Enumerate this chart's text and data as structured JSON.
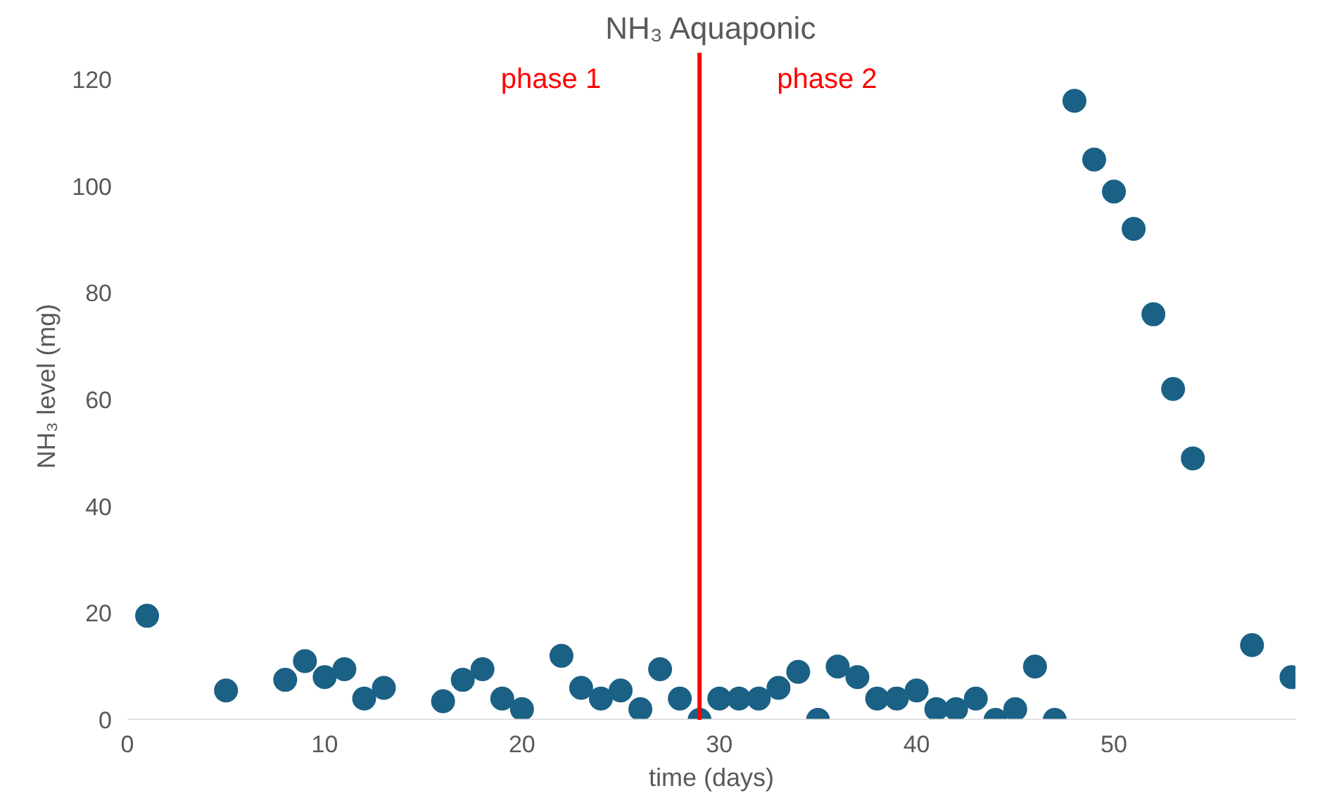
{
  "chart_data": {
    "type": "scatter",
    "title": "NH₃ Aquaponic",
    "xlabel": "time (days)",
    "ylabel": "NH₃ level (mg)",
    "x": [
      1,
      5,
      8,
      9,
      10,
      11,
      12,
      13,
      16,
      17,
      18,
      19,
      20,
      22,
      23,
      24,
      25,
      26,
      27,
      28,
      29,
      30,
      31,
      32,
      33,
      34,
      35,
      36,
      37,
      38,
      39,
      40,
      41,
      42,
      43,
      44,
      45,
      46,
      47,
      48,
      49,
      50,
      51,
      52,
      53,
      54,
      57,
      59
    ],
    "series": [
      {
        "color": "#1a6185",
        "values": [
          19.5,
          5.5,
          7.5,
          11,
          8,
          9.5,
          4,
          6,
          3.5,
          7.5,
          9.5,
          4,
          2,
          12,
          6,
          4,
          5.5,
          2,
          9.5,
          4,
          0,
          4,
          4,
          4,
          6,
          9,
          0,
          10,
          8,
          4,
          4,
          5.5,
          2,
          2,
          4,
          0,
          2,
          10,
          0,
          116,
          105,
          99,
          92,
          76,
          62,
          49,
          14,
          8
        ]
      }
    ],
    "xlim": [
      0,
      59.2
    ],
    "ylim": [
      0,
      125
    ],
    "xticks": [
      0,
      10,
      20,
      30,
      40,
      50
    ],
    "yticks": [
      0,
      20,
      40,
      60,
      80,
      100,
      120
    ],
    "grid": false,
    "marker": "circle",
    "ref_lines": [
      {
        "axis": "x",
        "value": 29,
        "color": "#ff0000"
      }
    ],
    "annotations": [
      "phase 1",
      "phase 2"
    ]
  }
}
